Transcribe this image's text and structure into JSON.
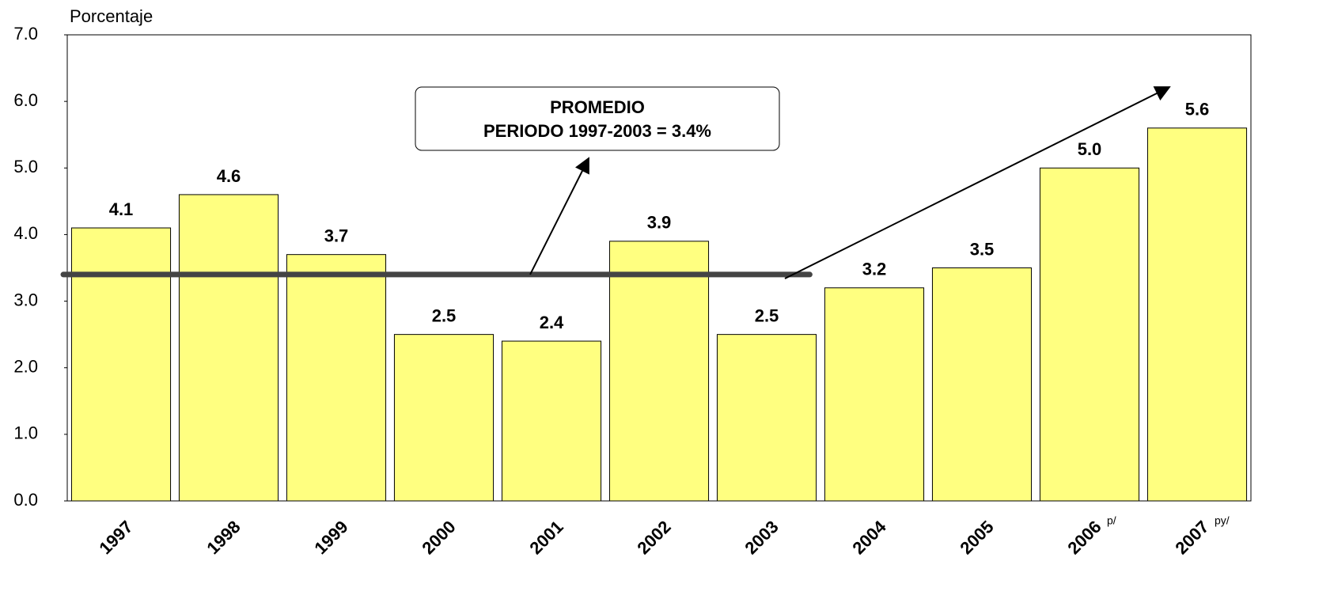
{
  "chart_data": {
    "type": "bar",
    "y_label": "Porcentaje",
    "categories": [
      "1997",
      "1998",
      "1999",
      "2000",
      "2001",
      "2002",
      "2003",
      "2004",
      "2005",
      "2006",
      "2007"
    ],
    "category_notes": [
      null,
      null,
      null,
      null,
      null,
      null,
      null,
      null,
      null,
      "p/",
      "py/"
    ],
    "values": [
      4.1,
      4.6,
      3.7,
      2.5,
      2.4,
      3.9,
      2.5,
      3.2,
      3.5,
      5.0,
      5.6
    ],
    "value_labels": [
      "4.1",
      "4.6",
      "3.7",
      "2.5",
      "2.4",
      "3.9",
      "2.5",
      "3.2",
      "3.5",
      "5.0",
      "5.6"
    ],
    "color": "#ffff80",
    "ylim": [
      0,
      7
    ],
    "yticks": [
      {
        "value": 0,
        "label": "0.0"
      },
      {
        "value": 1,
        "label": "1.0"
      },
      {
        "value": 2,
        "label": "2.0"
      },
      {
        "value": 3,
        "label": "3.0"
      },
      {
        "value": 4,
        "label": "4.0"
      },
      {
        "value": 5,
        "label": "5.0"
      },
      {
        "value": 6,
        "label": "6.0"
      },
      {
        "value": 7,
        "label": "7.0"
      }
    ],
    "average_line": {
      "value": 3.4,
      "color": "#444444"
    },
    "annotation": [
      "PROMEDIO",
      "PERIODO 1997-2003 =  3.4%"
    ]
  }
}
